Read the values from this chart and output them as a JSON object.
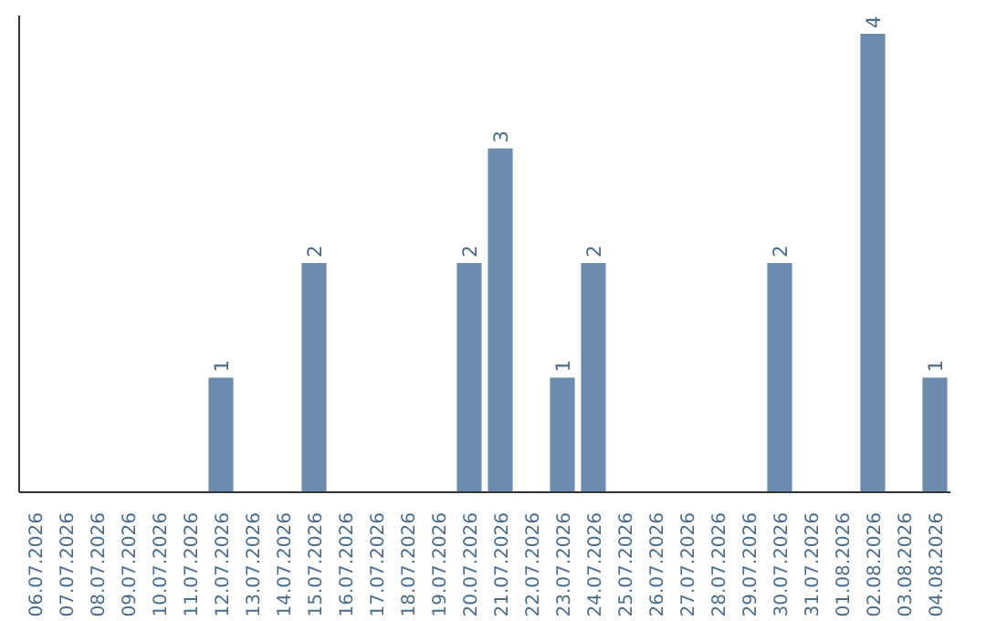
{
  "chart_data": {
    "type": "bar",
    "categories": [
      "06.07.2026",
      "07.07.2026",
      "08.07.2026",
      "09.07.2026",
      "10.07.2026",
      "11.07.2026",
      "12.07.2026",
      "13.07.2026",
      "14.07.2026",
      "15.07.2026",
      "16.07.2026",
      "17.07.2026",
      "18.07.2026",
      "19.07.2026",
      "20.07.2026",
      "21.07.2026",
      "22.07.2026",
      "23.07.2026",
      "24.07.2026",
      "25.07.2026",
      "26.07.2026",
      "27.07.2026",
      "28.07.2026",
      "29.07.2026",
      "30.07.2026",
      "31.07.2026",
      "01.08.2026",
      "02.08.2026",
      "03.08.2026",
      "04.08.2026"
    ],
    "values": [
      0,
      0,
      0,
      0,
      0,
      0,
      1,
      0,
      0,
      2,
      0,
      0,
      0,
      0,
      2,
      3,
      0,
      1,
      2,
      0,
      0,
      0,
      0,
      0,
      2,
      0,
      0,
      4,
      0,
      1
    ],
    "value_labels": [
      null,
      null,
      null,
      null,
      null,
      null,
      "1",
      null,
      null,
      "2",
      null,
      null,
      null,
      null,
      "2",
      "3",
      null,
      "1",
      "2",
      null,
      null,
      null,
      null,
      null,
      "2",
      null,
      null,
      "4",
      null,
      "1"
    ],
    "color": "#6b8cae",
    "grid": false,
    "tick_labels": "x"
  }
}
